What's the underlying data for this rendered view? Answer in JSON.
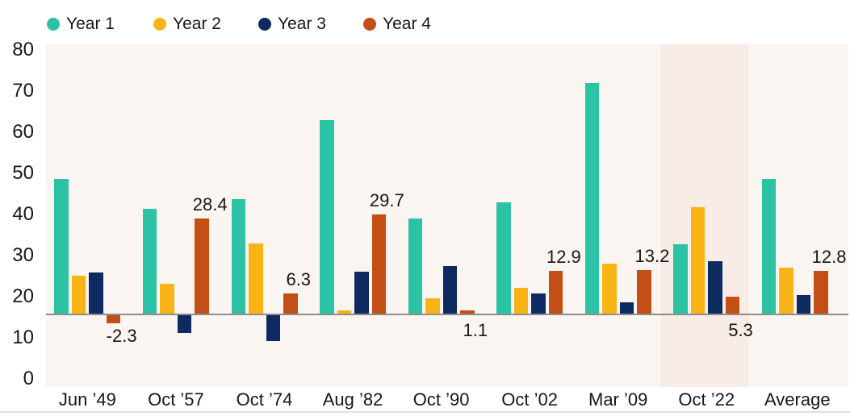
{
  "chart_data": {
    "type": "bar",
    "title": "",
    "categories": [
      "Jun ’49",
      "Oct ’57",
      "Oct ’74",
      "Aug ’82",
      "Oct ’90",
      "Oct ’02",
      "Mar ’09",
      "Oct ’22",
      "Average"
    ],
    "series": [
      {
        "name": "Year 1",
        "color": "#2bc3a4",
        "values": [
          40.0,
          31.2,
          34.2,
          57.5,
          28.5,
          33.2,
          68.6,
          20.8,
          40.0
        ]
      },
      {
        "name": "Year 2",
        "color": "#f8b414",
        "values": [
          11.4,
          9.1,
          20.9,
          1.2,
          4.8,
          7.9,
          15.1,
          31.7,
          13.8
        ]
      },
      {
        "name": "Year 3",
        "color": "#0d2a61",
        "values": [
          12.5,
          -5.3,
          -7.7,
          12.7,
          14.3,
          6.1,
          3.6,
          15.7,
          5.8
        ]
      },
      {
        "name": "Year 4",
        "color": "#c44f16",
        "values": [
          -2.3,
          28.4,
          6.3,
          29.7,
          1.1,
          12.9,
          13.2,
          5.3,
          12.8
        ],
        "data_labels": [
          "-2.3",
          "28.4",
          "6.3",
          "29.7",
          "1.1",
          "12.9",
          "13.2",
          "5.3",
          "12.8"
        ]
      }
    ],
    "y_axis": {
      "tick_labels": [
        "80",
        "70",
        "60",
        "50",
        "40",
        "30",
        "20",
        "10",
        "0"
      ],
      "min": 0,
      "max": 80
    },
    "xlabel": "",
    "ylabel": "",
    "grid": false,
    "legend_position": "top",
    "highlighted_category": "Oct ’22",
    "style_colors": {
      "plot_background": "#fbf5f2",
      "highlight_band": "#f8ece7",
      "zero_line": "#8c8c8c",
      "text": "#171717",
      "bottom_edge_line": "#e4dfdc"
    }
  }
}
